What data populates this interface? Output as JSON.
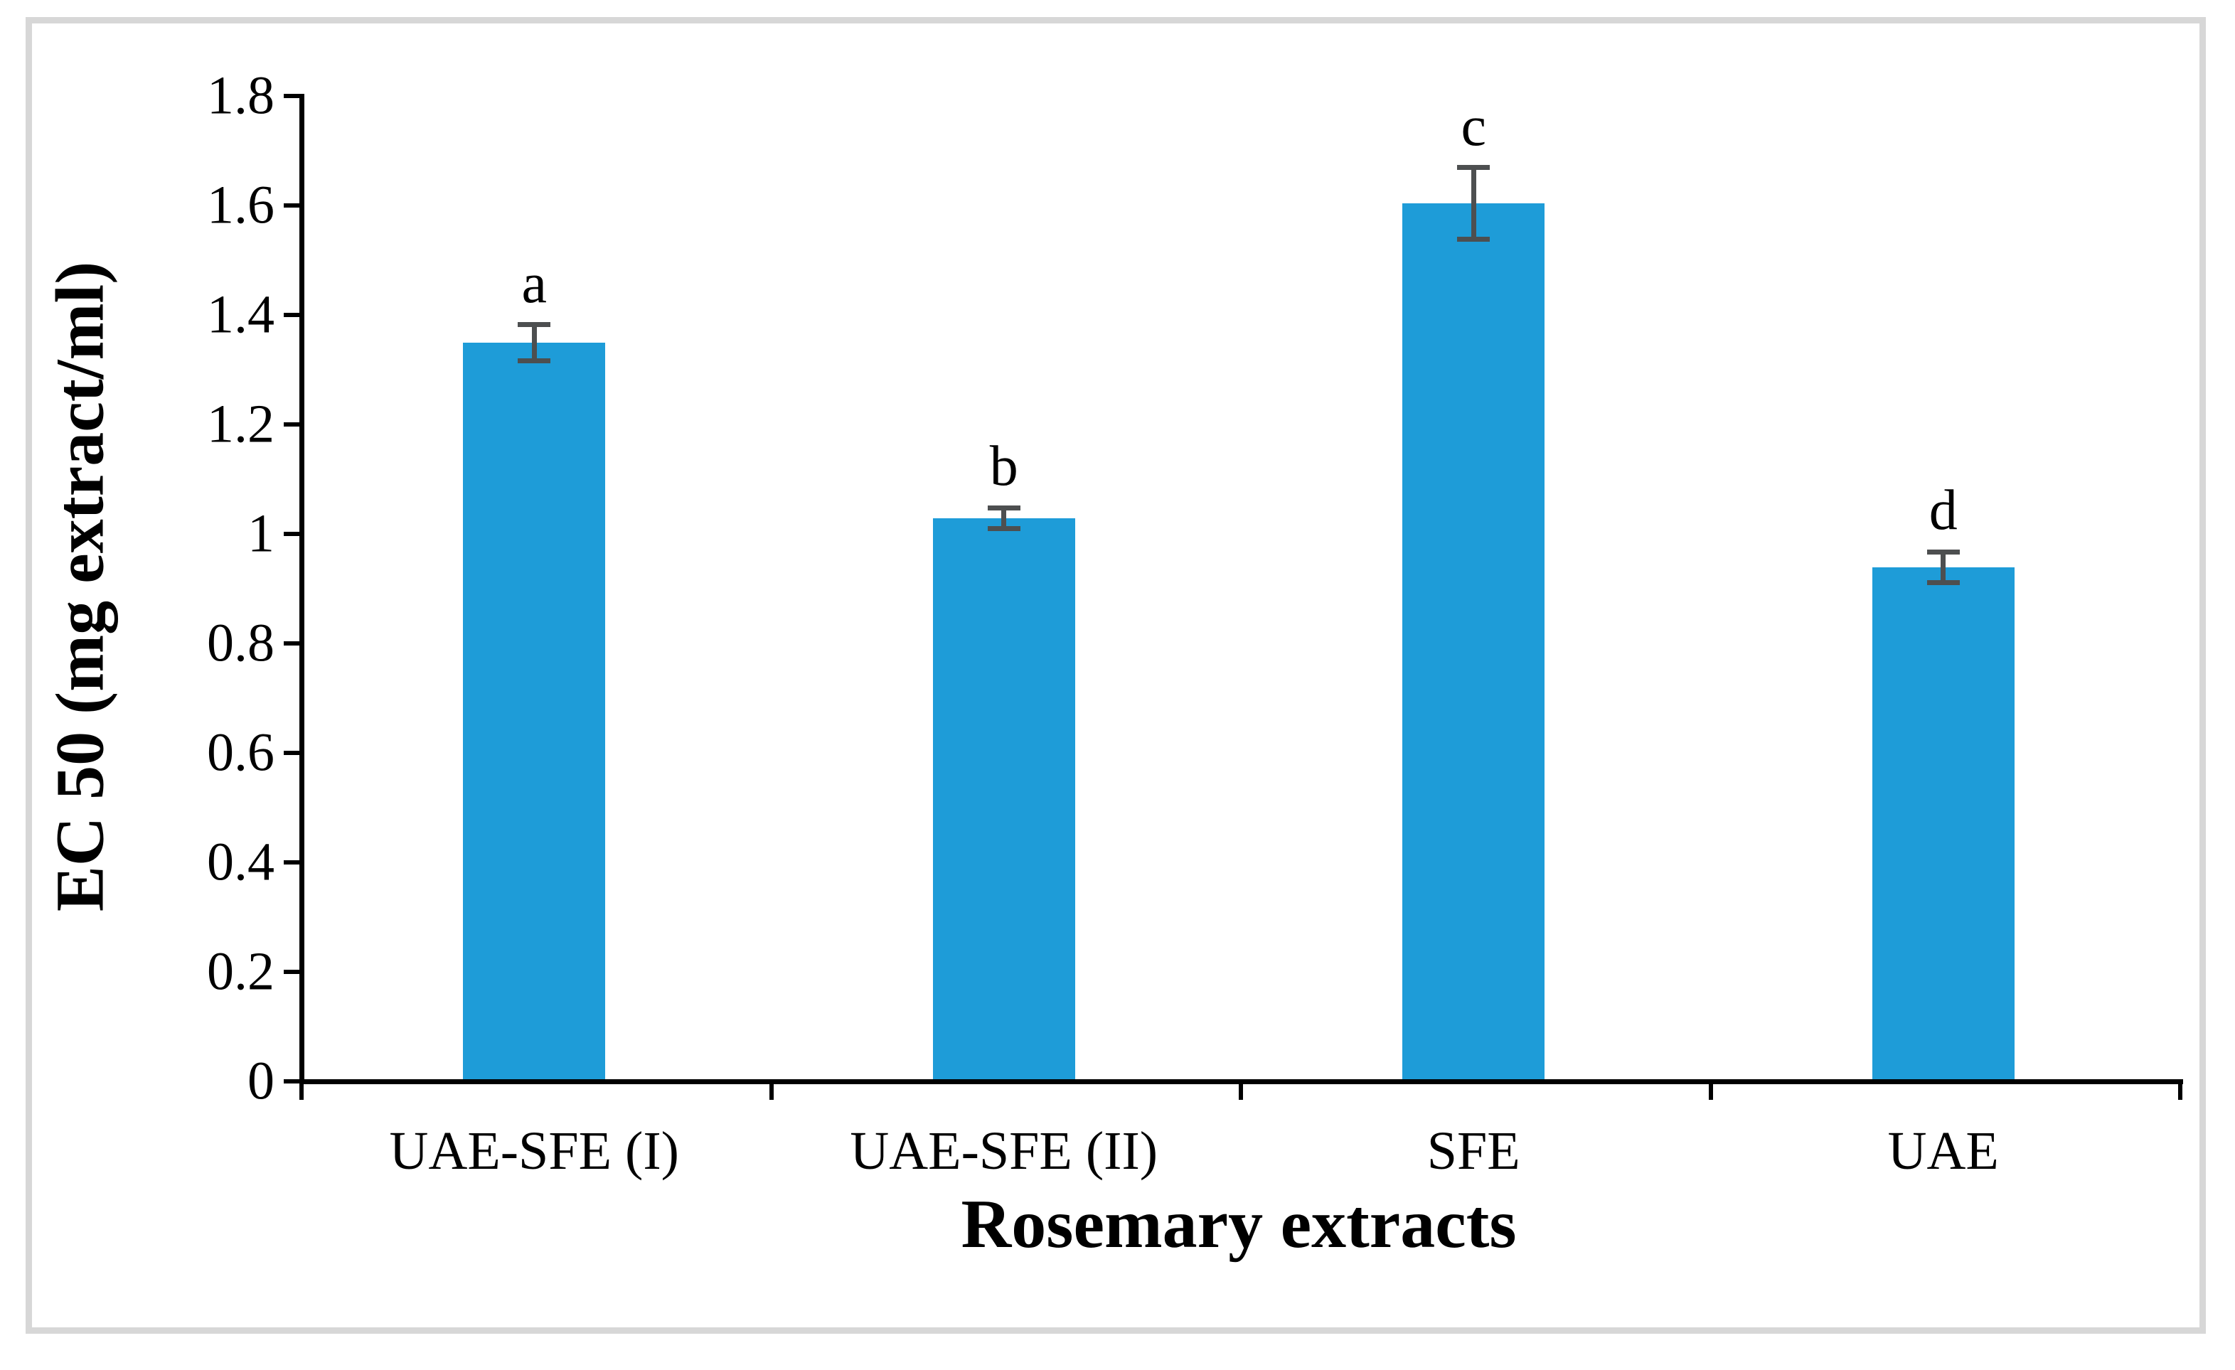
{
  "figure": {
    "background": "#ffffff",
    "border_color": "#d7d7d7"
  },
  "chart_data": {
    "type": "bar",
    "title": "",
    "xlabel": "Rosemary extracts",
    "ylabel": "EC 50 (mg extract/ml)",
    "categories": [
      "UAE-SFE (I)",
      "UAE-SFE (II)",
      "SFE",
      "UAE"
    ],
    "values": [
      1.345,
      1.025,
      1.6,
      0.935
    ],
    "errors": [
      0.033,
      0.019,
      0.065,
      0.028
    ],
    "significance_letters": [
      "a",
      "b",
      "c",
      "d"
    ],
    "ylim": [
      0,
      1.8
    ],
    "ytick_step": 0.2,
    "ytick_labels": [
      "0",
      "0.2",
      "0.4",
      "0.6",
      "0.8",
      "1",
      "1.2",
      "1.4",
      "1.6",
      "1.8"
    ],
    "bar_color": "#1e9cd8",
    "error_bar_color": "#4d4f50",
    "axis_color": "#000000",
    "grid": false,
    "legend_position": "none"
  }
}
